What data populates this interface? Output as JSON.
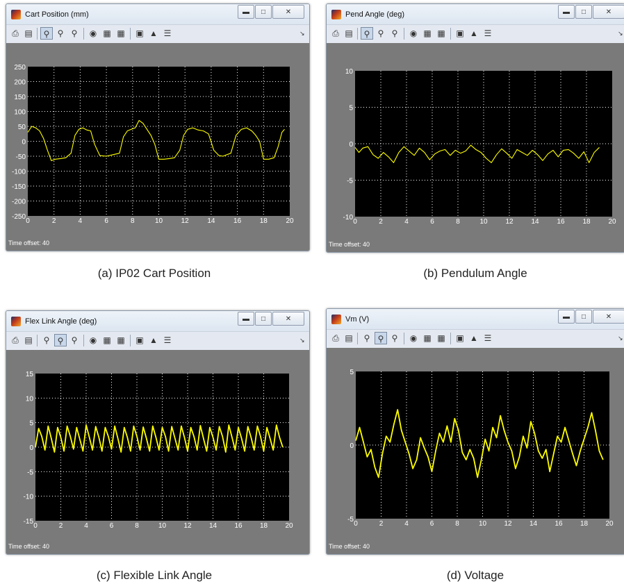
{
  "windows": [
    {
      "id": "cart",
      "title": "Cart Position (mm)",
      "caption": "(a) IP02 Cart Position",
      "time_offset": "Time offset:  40",
      "chart_data": {
        "type": "line",
        "xlim": [
          0,
          20
        ],
        "ylim": [
          -250,
          250
        ],
        "xticks": [
          "0",
          "2",
          "4",
          "6",
          "8",
          "10",
          "12",
          "14",
          "16",
          "18",
          "20"
        ],
        "yticks": [
          "250",
          "200",
          "150",
          "100",
          "50",
          "0",
          "-50",
          "-100",
          "-150",
          "-200",
          "-250"
        ],
        "grid": true,
        "series": [
          {
            "color": "#ffff00",
            "x": [
              0,
              0.3,
              0.6,
              0.9,
              1.2,
              1.5,
              1.8,
              2.1,
              2.5,
              2.9,
              3.3,
              3.6,
              3.9,
              4.2,
              4.5,
              4.8,
              5.1,
              5.5,
              6.0,
              6.5,
              7.0,
              7.3,
              7.6,
              7.9,
              8.2,
              8.5,
              8.8,
              9.1,
              9.4,
              9.7,
              10.0,
              10.4,
              10.8,
              11.2,
              11.6,
              11.9,
              12.2,
              12.6,
              13.0,
              13.4,
              13.8,
              14.2,
              14.6,
              14.9,
              15.2,
              15.5,
              15.9,
              16.3,
              16.7,
              17.1,
              17.4,
              17.7,
              18.0,
              18.4,
              18.8,
              19.1,
              19.4,
              19.6
            ],
            "y": [
              30,
              50,
              45,
              35,
              10,
              -30,
              -65,
              -60,
              -58,
              -55,
              -40,
              20,
              40,
              45,
              38,
              35,
              -10,
              -48,
              -50,
              -45,
              -40,
              15,
              35,
              40,
              45,
              70,
              60,
              40,
              20,
              -10,
              -60,
              -60,
              -58,
              -55,
              -30,
              20,
              40,
              45,
              38,
              35,
              25,
              -30,
              -48,
              -50,
              -45,
              -40,
              20,
              40,
              45,
              35,
              20,
              0,
              -60,
              -60,
              -55,
              -20,
              30,
              40
            ]
          }
        ]
      }
    },
    {
      "id": "pend",
      "title": "Pend Angle (deg)",
      "caption": "(b) Pendulum Angle",
      "time_offset": "Time offset:  40",
      "chart_data": {
        "type": "line",
        "xlim": [
          0,
          20
        ],
        "ylim": [
          -10,
          10
        ],
        "xticks": [
          "0",
          "2",
          "4",
          "6",
          "8",
          "10",
          "12",
          "14",
          "16",
          "18",
          "20"
        ],
        "yticks": [
          "10",
          "5",
          "0",
          "-5",
          "-10"
        ],
        "grid": true,
        "series": [
          {
            "color": "#ffff00",
            "x": [
              0,
              0.3,
              0.6,
              1.0,
              1.4,
              1.8,
              2.2,
              2.6,
              3.0,
              3.4,
              3.8,
              4.2,
              4.6,
              5.0,
              5.4,
              5.8,
              6.2,
              6.6,
              7.0,
              7.4,
              7.8,
              8.2,
              8.6,
              9.0,
              9.4,
              9.8,
              10.2,
              10.6,
              11.0,
              11.4,
              11.8,
              12.2,
              12.6,
              13.0,
              13.4,
              13.8,
              14.2,
              14.6,
              15.0,
              15.4,
              15.8,
              16.2,
              16.6,
              17.0,
              17.4,
              17.8,
              18.2,
              18.6,
              19.0
            ],
            "y": [
              -0.5,
              -1.2,
              -0.6,
              -0.4,
              -1.5,
              -2.0,
              -1.2,
              -1.8,
              -2.6,
              -1.2,
              -0.4,
              -1.0,
              -1.6,
              -0.6,
              -1.2,
              -2.2,
              -1.4,
              -1.0,
              -0.8,
              -1.6,
              -0.9,
              -1.3,
              -1.0,
              -0.2,
              -0.8,
              -1.2,
              -2.0,
              -2.6,
              -1.5,
              -0.7,
              -1.3,
              -2.0,
              -0.8,
              -1.2,
              -1.6,
              -0.9,
              -1.5,
              -2.3,
              -1.4,
              -0.9,
              -1.8,
              -0.9,
              -0.8,
              -1.3,
              -2.0,
              -1.1,
              -2.6,
              -1.2,
              -0.5
            ]
          }
        ]
      }
    },
    {
      "id": "flex",
      "title": "Flex Link Angle (deg)",
      "caption": "(c) Flexible Link Angle",
      "time_offset": "Time offset:  40",
      "chart_data": {
        "type": "line",
        "xlim": [
          0,
          20
        ],
        "ylim": [
          -15,
          15
        ],
        "xticks": [
          "0",
          "2",
          "4",
          "6",
          "8",
          "10",
          "12",
          "14",
          "16",
          "18",
          "20"
        ],
        "yticks": [
          "15",
          "10",
          "5",
          "0",
          "-5",
          "-10",
          "-15"
        ],
        "grid": true,
        "series": [
          {
            "color": "#ffff00",
            "x": [
              0,
              0.25,
              0.5,
              0.75,
              1.0,
              1.25,
              1.5,
              1.75,
              2.0,
              2.25,
              2.5,
              2.75,
              3.0,
              3.25,
              3.5,
              3.75,
              4.0,
              4.25,
              4.5,
              4.75,
              5.0,
              5.25,
              5.5,
              5.75,
              6.0,
              6.25,
              6.5,
              6.75,
              7.0,
              7.25,
              7.5,
              7.75,
              8.0,
              8.25,
              8.5,
              8.75,
              9.0,
              9.25,
              9.5,
              9.75,
              10.0,
              10.25,
              10.5,
              10.75,
              11.0,
              11.25,
              11.5,
              11.75,
              12.0,
              12.25,
              12.5,
              12.75,
              13.0,
              13.25,
              13.5,
              13.75,
              14.0,
              14.25,
              14.5,
              14.75,
              15.0,
              15.25,
              15.5,
              15.75,
              16.0,
              16.25,
              16.5,
              16.75,
              17.0,
              17.25,
              17.5,
              17.75,
              18.0,
              18.25,
              18.5,
              18.75,
              19.0,
              19.25,
              19.5
            ],
            "y": [
              0,
              3.8,
              2.2,
              -0.6,
              4.3,
              1.8,
              -1.0,
              4.0,
              2.0,
              -0.8,
              4.3,
              2.2,
              -0.4,
              4.0,
              1.6,
              -0.8,
              4.5,
              2.0,
              -0.6,
              4.2,
              2.0,
              -0.8,
              4.0,
              2.2,
              -0.4,
              4.3,
              1.8,
              -1.0,
              4.0,
              2.0,
              -0.8,
              4.3,
              2.2,
              -0.6,
              4.1,
              1.8,
              -0.8,
              4.3,
              2.0,
              -0.6,
              4.0,
              2.2,
              -0.8,
              4.2,
              1.8,
              -0.6,
              4.3,
              2.0,
              -0.8,
              4.0,
              2.2,
              -0.6,
              4.4,
              1.8,
              -0.8,
              4.0,
              2.0,
              -0.6,
              4.2,
              2.2,
              -1.0,
              4.5,
              2.0,
              -0.6,
              4.0,
              1.8,
              -0.8,
              4.2,
              2.0,
              -0.6,
              4.3,
              2.2,
              -0.8,
              4.0,
              1.8,
              -0.6,
              4.5,
              2.0,
              0
            ]
          }
        ]
      }
    },
    {
      "id": "vm",
      "title": "Vm (V)",
      "caption": "(d) Voltage",
      "time_offset": "Time offset:  40",
      "chart_data": {
        "type": "line",
        "xlim": [
          0,
          20
        ],
        "ylim": [
          -5,
          5
        ],
        "xticks": [
          "0",
          "2",
          "4",
          "6",
          "8",
          "10",
          "12",
          "14",
          "16",
          "18",
          "20"
        ],
        "yticks": [
          "5",
          "0",
          "-5"
        ],
        "grid": true,
        "series": [
          {
            "color": "#ffff00",
            "x": [
              0,
              0.3,
              0.6,
              0.9,
              1.2,
              1.5,
              1.8,
              2.1,
              2.4,
              2.7,
              3.0,
              3.3,
              3.6,
              3.9,
              4.2,
              4.5,
              4.8,
              5.1,
              5.4,
              5.7,
              6.0,
              6.3,
              6.6,
              6.9,
              7.2,
              7.5,
              7.8,
              8.1,
              8.4,
              8.7,
              9.0,
              9.3,
              9.6,
              9.9,
              10.2,
              10.5,
              10.8,
              11.1,
              11.4,
              11.7,
              12.0,
              12.3,
              12.6,
              12.9,
              13.2,
              13.5,
              13.8,
              14.1,
              14.4,
              14.7,
              15.0,
              15.3,
              15.6,
              15.9,
              16.2,
              16.5,
              16.8,
              17.1,
              17.4,
              17.7,
              18.0,
              18.3,
              18.6,
              18.9,
              19.2,
              19.5
            ],
            "y": [
              0.3,
              1.2,
              0.2,
              -0.8,
              -0.3,
              -1.5,
              -2.2,
              -0.6,
              0.6,
              0.2,
              1.4,
              2.4,
              1.0,
              0.2,
              -0.6,
              -1.6,
              -1.0,
              0.5,
              -0.2,
              -0.8,
              -1.8,
              -0.4,
              0.8,
              0.2,
              1.3,
              0.2,
              1.8,
              1.0,
              -0.5,
              -1.0,
              -0.3,
              -0.9,
              -2.2,
              -1.0,
              0.4,
              -0.4,
              1.2,
              0.5,
              2.0,
              1.0,
              0.2,
              -0.4,
              -1.6,
              -0.8,
              0.6,
              -0.2,
              1.6,
              0.8,
              -0.4,
              -0.9,
              -0.3,
              -1.8,
              -0.6,
              0.6,
              0.2,
              1.2,
              0.3,
              -0.6,
              -1.4,
              -0.4,
              0.4,
              1.2,
              2.2,
              1.0,
              -0.4,
              -1.0
            ]
          }
        ]
      }
    }
  ],
  "icons": [
    "print-icon",
    "page-setup-icon",
    "zoom-icon",
    "zoom-x-icon",
    "zoom-y-icon",
    "find-icon",
    "autoscale-icon",
    "save-axes-icon",
    "params-icon",
    "lock-icon",
    "float-scope-icon"
  ],
  "colors": {
    "plot_bg": "#000000",
    "figure_bg": "#7a7a7a",
    "trace": "#ffff00",
    "grid": "#ffffff"
  }
}
